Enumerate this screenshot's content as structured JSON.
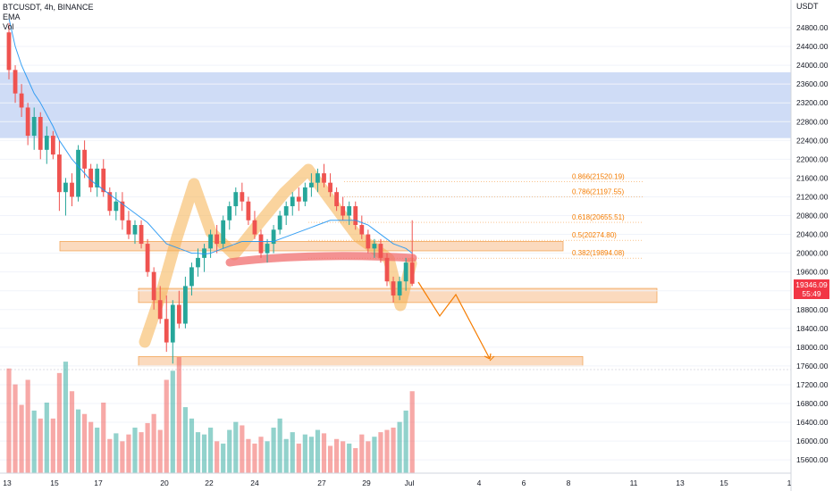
{
  "header": {
    "symbol_line": "BTCUSDT, 4h, BINANCE",
    "indicator_1": "EMA",
    "indicator_2": "Vol"
  },
  "price_axis": {
    "currency": "USDT",
    "last_price": "19346.09",
    "countdown": "55:49",
    "last_price_color": "#f23645"
  },
  "colors": {
    "up": "#26a69a",
    "down": "#ef5350",
    "ema": "#2196f3",
    "supply_zone": "#cfdcf6",
    "support_zone": "#f9cba3",
    "pattern_highlight": "#f6b04f",
    "fib_label": "#f57c00",
    "red_marker": "#f06d6d",
    "arrow": "#f57c00"
  },
  "zones": [
    {
      "name": "resistance-zone",
      "from_price": 22450,
      "to_price": 23850
    },
    {
      "name": "support-zone-upper",
      "from_price": 20050,
      "to_price": 20250
    },
    {
      "name": "support-zone-middle",
      "from_price": 18950,
      "to_price": 19250
    },
    {
      "name": "support-zone-lower",
      "from_price": 17600,
      "to_price": 17800
    }
  ],
  "fib_levels": [
    {
      "label": "0.866(21520.19)",
      "price": 21520.19
    },
    {
      "label": "0.786(21197.55)",
      "price": 21197.55
    },
    {
      "label": "0.618(20655.51)",
      "price": 20655.51
    },
    {
      "label": "0.5(20274.80)",
      "price": 20274.8
    },
    {
      "label": "0.382(19894.08)",
      "price": 19894.08
    }
  ],
  "chart_data": {
    "type": "candlestick",
    "symbol": "BTCUSDT",
    "interval": "4h",
    "exchange": "BINANCE",
    "x_tick_labels": [
      "13",
      "15",
      "17",
      "20",
      "22",
      "24",
      "27",
      "29",
      "Jul",
      "4",
      "6",
      "8",
      "11",
      "13",
      "15",
      "1"
    ],
    "y_tick_labels": [
      "24800.00",
      "24400.00",
      "24000.00",
      "23600.00",
      "23200.00",
      "22800.00",
      "22400.00",
      "22000.00",
      "21600.00",
      "21200.00",
      "20800.00",
      "20400.00",
      "20000.00",
      "19600.00",
      "19200.00",
      "18800.00",
      "18400.00",
      "18000.00",
      "17600.00",
      "17200.00",
      "16800.00",
      "16400.00",
      "16000.00",
      "15600.00"
    ],
    "ylim": [
      15350,
      25050
    ],
    "candles_ohlc": [
      [
        24700,
        24900,
        23700,
        23900
      ],
      [
        23900,
        24000,
        23200,
        23400
      ],
      [
        23400,
        23600,
        22900,
        23100
      ],
      [
        23100,
        23200,
        22300,
        22500
      ],
      [
        22500,
        23100,
        22200,
        22900
      ],
      [
        22900,
        23000,
        22000,
        22200
      ],
      [
        22200,
        22700,
        21900,
        22500
      ],
      [
        22500,
        22600,
        22000,
        22100
      ],
      [
        22100,
        22400,
        20900,
        21300
      ],
      [
        21300,
        21600,
        20800,
        21500
      ],
      [
        21500,
        21700,
        21000,
        21200
      ],
      [
        21200,
        22300,
        21100,
        22200
      ],
      [
        22200,
        22400,
        21600,
        21800
      ],
      [
        21800,
        21900,
        21300,
        21400
      ],
      [
        21400,
        21900,
        21200,
        21800
      ],
      [
        21800,
        22000,
        21200,
        21300
      ],
      [
        21300,
        21400,
        20800,
        20900
      ],
      [
        20900,
        21300,
        20700,
        21100
      ],
      [
        21100,
        21300,
        20500,
        20700
      ],
      [
        20700,
        20900,
        20300,
        20400
      ],
      [
        20400,
        20700,
        20200,
        20600
      ],
      [
        20600,
        20700,
        20100,
        20200
      ],
      [
        20200,
        20300,
        19500,
        19600
      ],
      [
        19600,
        19700,
        18800,
        19000
      ],
      [
        19000,
        19300,
        18500,
        18600
      ],
      [
        18600,
        19100,
        17900,
        18100
      ],
      [
        18100,
        19000,
        17650,
        18900
      ],
      [
        18900,
        19200,
        18400,
        18500
      ],
      [
        18500,
        19500,
        18400,
        19300
      ],
      [
        19300,
        19800,
        19100,
        19700
      ],
      [
        19700,
        20100,
        19500,
        19900
      ],
      [
        19900,
        20200,
        19600,
        20100
      ],
      [
        20100,
        20500,
        19900,
        20400
      ],
      [
        20400,
        20600,
        20000,
        20200
      ],
      [
        20200,
        20800,
        20100,
        20700
      ],
      [
        20700,
        21100,
        20500,
        21000
      ],
      [
        21000,
        21400,
        20800,
        21300
      ],
      [
        21300,
        21500,
        20900,
        21100
      ],
      [
        21100,
        21200,
        20600,
        20700
      ],
      [
        20700,
        20900,
        20300,
        20400
      ],
      [
        20400,
        20500,
        19900,
        20000
      ],
      [
        20000,
        20300,
        19800,
        20200
      ],
      [
        20200,
        20600,
        20000,
        20500
      ],
      [
        20500,
        20900,
        20400,
        20800
      ],
      [
        20800,
        21100,
        20600,
        21000
      ],
      [
        21000,
        21300,
        20800,
        21200
      ],
      [
        21200,
        21400,
        20900,
        21100
      ],
      [
        21100,
        21500,
        21000,
        21400
      ],
      [
        21400,
        21700,
        21200,
        21500
      ],
      [
        21500,
        21800,
        21300,
        21700
      ],
      [
        21700,
        21900,
        21400,
        21500
      ],
      [
        21500,
        21700,
        21200,
        21300
      ],
      [
        21300,
        21400,
        20900,
        21000
      ],
      [
        21000,
        21200,
        20700,
        20800
      ],
      [
        20800,
        21100,
        20600,
        21000
      ],
      [
        21000,
        21100,
        20500,
        20600
      ],
      [
        20600,
        20800,
        20300,
        20400
      ],
      [
        20400,
        20500,
        20000,
        20100
      ],
      [
        20100,
        20300,
        19900,
        20200
      ],
      [
        20200,
        20300,
        19800,
        19900
      ],
      [
        19900,
        20000,
        19300,
        19400
      ],
      [
        19400,
        19500,
        18950,
        19100
      ],
      [
        19100,
        19500,
        19000,
        19400
      ],
      [
        19400,
        19900,
        19200,
        19800
      ],
      [
        19800,
        20700,
        19300,
        19350
      ]
    ],
    "ema_values": [
      25000,
      24400,
      24000,
      23700,
      23400,
      23200,
      22950,
      22700,
      22400,
      22200,
      22000,
      21850,
      21700,
      21550,
      21450,
      21350,
      21250,
      21150,
      21050,
      20950,
      20850,
      20750,
      20650,
      20500,
      20350,
      20200,
      20150,
      20100,
      20050,
      20000,
      20000,
      19980,
      20000,
      20050,
      20100,
      20150,
      20200,
      20250,
      20250,
      20250,
      20250,
      20250,
      20250,
      20300,
      20350,
      20400,
      20450,
      20500,
      20550,
      20600,
      20650,
      20700,
      20700,
      20700,
      20700,
      20700,
      20650,
      20600,
      20500,
      20400,
      20300,
      20200,
      20150,
      20100,
      20000
    ],
    "volume_values": [
      92,
      78,
      60,
      82,
      55,
      48,
      62,
      48,
      88,
      98,
      72,
      56,
      52,
      45,
      40,
      62,
      30,
      35,
      28,
      34,
      40,
      36,
      44,
      52,
      38,
      82,
      90,
      102,
      58,
      48,
      36,
      34,
      40,
      28,
      26,
      38,
      45,
      42,
      30,
      26,
      32,
      28,
      40,
      48,
      30,
      36,
      26,
      34,
      32,
      38,
      35,
      24,
      30,
      28,
      26,
      22,
      34,
      28,
      32,
      36,
      38,
      40,
      45,
      55,
      72
    ]
  },
  "x_ticks": [
    "13",
    "15",
    "17",
    "20",
    "22",
    "24",
    "27",
    "29",
    "Jul",
    "4",
    "6",
    "8",
    "11",
    "13",
    "15",
    "1"
  ]
}
